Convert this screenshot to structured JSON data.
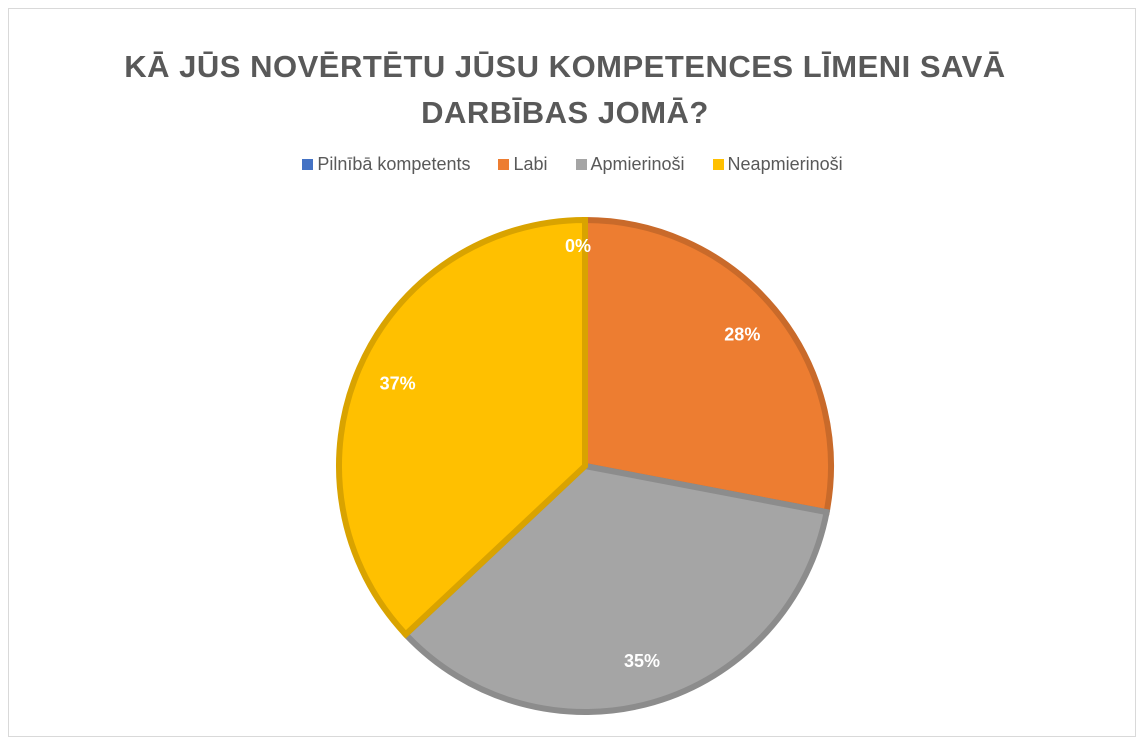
{
  "chart_data": {
    "type": "pie",
    "title": "KĀ JŪS NOVĒRTĒTU JŪSU KOMPETENCES LĪMENI SAVĀ DARBĪBAS JOMĀ?",
    "categories": [
      "Pilnībā kompetents",
      "Labi",
      "Apmierinoši",
      "Neapmierinoši"
    ],
    "values": [
      0,
      28,
      35,
      37
    ],
    "value_labels": [
      "0%",
      "28%",
      "35%",
      "37%"
    ],
    "colors": [
      "#4472c4",
      "#ed7d31",
      "#a5a5a5",
      "#ffc000"
    ],
    "legend": "top"
  }
}
